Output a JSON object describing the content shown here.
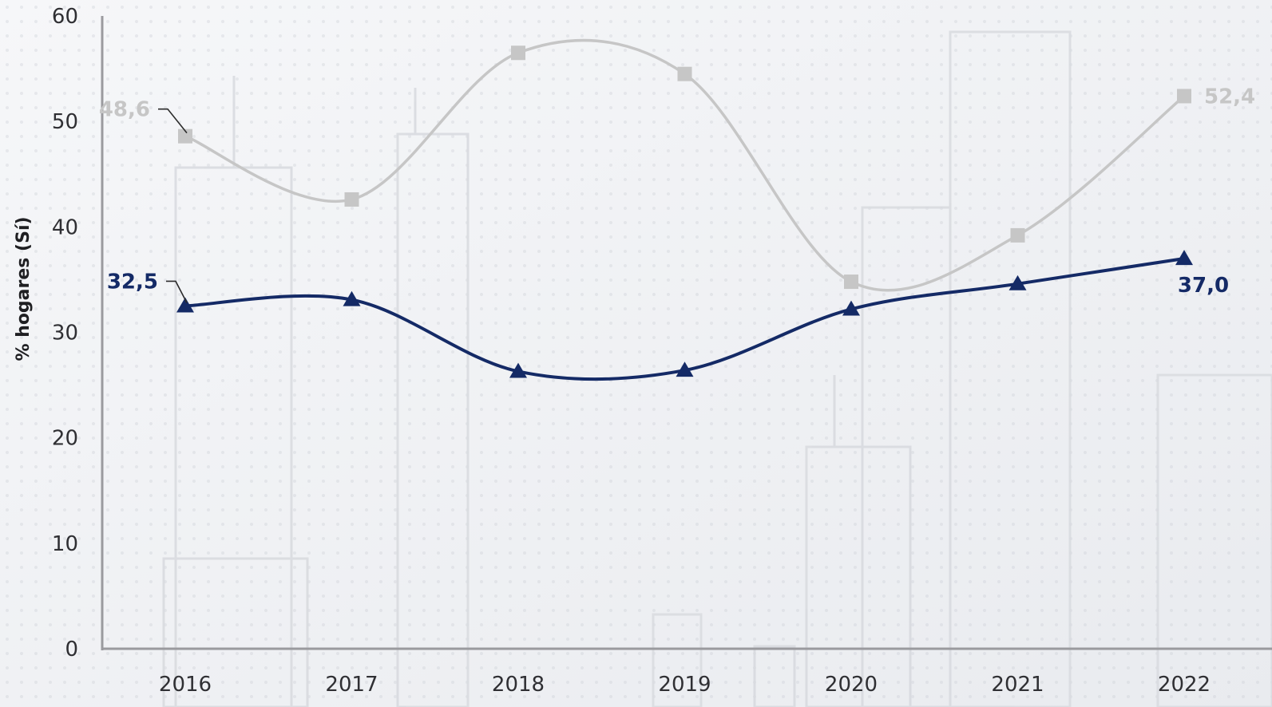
{
  "chart_data": {
    "type": "line",
    "ylabel": "% hogares (Sí)",
    "xlabel": "",
    "title": "",
    "ylim": [
      0,
      60
    ],
    "yticks": [
      "0",
      "10",
      "20",
      "30",
      "40",
      "50",
      "60"
    ],
    "categories": [
      "2016",
      "2017",
      "2018",
      "2019",
      "2020",
      "2021",
      "2022"
    ],
    "grid": false,
    "series": [
      {
        "values": [
          48.6,
          42.6,
          56.5,
          54.5,
          34.8,
          39.2,
          52.4
        ],
        "color": "#c6c6c6",
        "marker": "square"
      },
      {
        "values": [
          32.5,
          33.1,
          26.3,
          26.4,
          32.2,
          34.6,
          37.0
        ],
        "color": "#142a66",
        "marker": "triangle"
      }
    ],
    "annotations": [
      {
        "series": 0,
        "point": 0,
        "text": "48,6"
      },
      {
        "series": 0,
        "point": 6,
        "text": "52,4"
      },
      {
        "series": 1,
        "point": 0,
        "text": "32,5"
      },
      {
        "series": 1,
        "point": 6,
        "text": "37,0"
      }
    ]
  }
}
